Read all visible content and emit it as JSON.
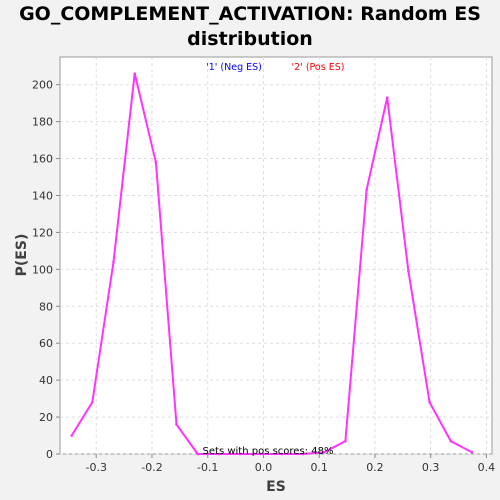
{
  "chart_data": {
    "type": "line",
    "title": [
      "GO_COMPLEMENT_ACTIVATION: Random ES",
      "distribution"
    ],
    "xlabel": "ES",
    "ylabel": "P(ES)",
    "xlim": [
      -0.365,
      0.41
    ],
    "ylim": [
      0,
      215
    ],
    "xticks": [
      "-0.3",
      "-0.2",
      "-0.1",
      "0.0",
      "0.1",
      "0.2",
      "0.3",
      "0.4"
    ],
    "xtick_values": [
      -0.3,
      -0.2,
      -0.1,
      0.0,
      0.1,
      0.2,
      0.3,
      0.4
    ],
    "yticks": [
      "0",
      "20",
      "40",
      "60",
      "80",
      "100",
      "120",
      "140",
      "160",
      "180",
      "200"
    ],
    "ytick_values": [
      0,
      20,
      40,
      60,
      80,
      100,
      120,
      140,
      160,
      180,
      200
    ],
    "grid": true,
    "legend": [
      {
        "label": "'1' (Neg ES)",
        "color": "#0000ff"
      },
      {
        "label": "'2' (Pos ES)",
        "color": "#ff0000"
      }
    ],
    "annotation": "Sets with pos scores: 48%",
    "series": [
      {
        "color": "#ff33ff",
        "x": [
          -0.344,
          -0.307,
          -0.269,
          -0.231,
          -0.193,
          -0.156,
          -0.118,
          -0.08,
          -0.042,
          -0.005,
          0.033,
          0.071,
          0.109,
          0.147,
          0.185,
          0.222,
          0.26,
          0.298,
          0.336,
          0.374
        ],
        "y": [
          10,
          28,
          104,
          206,
          158,
          16,
          0,
          0,
          0,
          0,
          0,
          0,
          1,
          7,
          143,
          193,
          99,
          28,
          7,
          1
        ]
      }
    ]
  }
}
